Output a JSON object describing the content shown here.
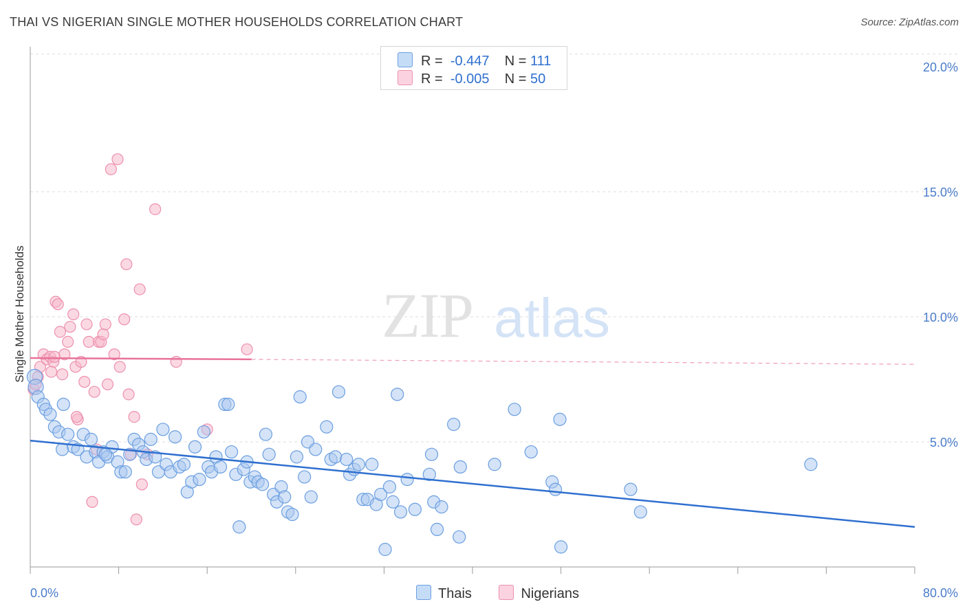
{
  "header": {
    "title": "THAI VS NIGERIAN SINGLE MOTHER HOUSEHOLDS CORRELATION CHART",
    "source": "Source: ZipAtlas.com"
  },
  "watermark": {
    "zip": "ZIP",
    "atlas": "atlas"
  },
  "legend": {
    "thais": {
      "r_label": "R =",
      "r_value": "-0.447",
      "n_label": "N =",
      "n_value": "111"
    },
    "nigerians": {
      "r_label": "R =",
      "r_value": "-0.005",
      "n_label": "N =",
      "n_value": "50"
    }
  },
  "bottom_legend": {
    "thais": "Thais",
    "nigerians": "Nigerians"
  },
  "colors": {
    "thais_fill": "#a9c8f0",
    "thais_stroke": "#6a9ee0",
    "thais_line": "#2f6fcf",
    "nigerians_fill": "#f7b9cc",
    "nigerians_stroke": "#ec8fae",
    "nigerians_line": "#e8729a",
    "tick_text": "#4a7cc9",
    "grid": "#dddddd"
  },
  "chart_data": {
    "type": "scatter",
    "title": "THAI VS NIGERIAN SINGLE MOTHER HOUSEHOLDS CORRELATION CHART",
    "xlabel": "",
    "ylabel": "Single Mother Households",
    "xlim": [
      0,
      80
    ],
    "ylim": [
      0,
      20.5
    ],
    "x_tick_labels": [
      "0.0%",
      "80.0%"
    ],
    "y_ticks": [
      5,
      10,
      15,
      20
    ],
    "y_tick_labels": [
      "5.0%",
      "10.0%",
      "15.0%",
      "20.0%"
    ],
    "grid": "horizontal dashed",
    "legend_position": "top-center",
    "series": [
      {
        "name": "Thais",
        "points": [
          [
            0.4,
            7.6
          ],
          [
            0.5,
            7.2
          ],
          [
            0.7,
            6.8
          ],
          [
            1.2,
            6.5
          ],
          [
            1.4,
            6.3
          ],
          [
            1.8,
            6.1
          ],
          [
            2.2,
            5.6
          ],
          [
            2.6,
            5.4
          ],
          [
            2.9,
            4.7
          ],
          [
            3.4,
            5.3
          ],
          [
            3.9,
            4.8
          ],
          [
            4.3,
            4.7
          ],
          [
            4.8,
            5.3
          ],
          [
            5.1,
            4.4
          ],
          [
            5.5,
            5.1
          ],
          [
            5.9,
            4.6
          ],
          [
            6.2,
            4.2
          ],
          [
            6.6,
            4.6
          ],
          [
            7.0,
            4.4
          ],
          [
            7.4,
            4.8
          ],
          [
            7.9,
            4.2
          ],
          [
            8.2,
            3.8
          ],
          [
            8.6,
            3.8
          ],
          [
            9.0,
            4.5
          ],
          [
            9.4,
            5.1
          ],
          [
            9.8,
            4.9
          ],
          [
            10.2,
            4.6
          ],
          [
            10.5,
            4.3
          ],
          [
            10.9,
            5.1
          ],
          [
            11.3,
            4.4
          ],
          [
            11.6,
            3.8
          ],
          [
            12.0,
            5.5
          ],
          [
            12.3,
            4.1
          ],
          [
            12.7,
            3.8
          ],
          [
            13.1,
            5.2
          ],
          [
            13.5,
            4.0
          ],
          [
            13.9,
            4.1
          ],
          [
            14.2,
            3.0
          ],
          [
            14.6,
            3.4
          ],
          [
            14.9,
            4.8
          ],
          [
            15.3,
            3.5
          ],
          [
            15.7,
            5.4
          ],
          [
            16.1,
            4.0
          ],
          [
            16.4,
            3.8
          ],
          [
            16.8,
            4.4
          ],
          [
            17.2,
            4.0
          ],
          [
            17.6,
            6.5
          ],
          [
            17.9,
            6.5
          ],
          [
            18.2,
            4.6
          ],
          [
            18.6,
            3.7
          ],
          [
            18.9,
            1.6
          ],
          [
            19.3,
            3.9
          ],
          [
            19.6,
            4.2
          ],
          [
            19.9,
            3.4
          ],
          [
            20.3,
            3.6
          ],
          [
            20.6,
            3.4
          ],
          [
            21.0,
            3.3
          ],
          [
            21.3,
            5.3
          ],
          [
            21.6,
            4.5
          ],
          [
            22.0,
            2.9
          ],
          [
            22.3,
            2.6
          ],
          [
            22.7,
            3.2
          ],
          [
            23.0,
            2.8
          ],
          [
            23.3,
            2.2
          ],
          [
            23.7,
            2.1
          ],
          [
            24.1,
            4.4
          ],
          [
            24.4,
            6.8
          ],
          [
            24.8,
            3.6
          ],
          [
            25.1,
            5.0
          ],
          [
            25.4,
            2.8
          ],
          [
            25.8,
            4.7
          ],
          [
            26.8,
            5.6
          ],
          [
            27.2,
            4.3
          ],
          [
            27.6,
            4.4
          ],
          [
            27.9,
            7.0
          ],
          [
            28.6,
            4.3
          ],
          [
            28.9,
            3.7
          ],
          [
            29.3,
            3.9
          ],
          [
            29.7,
            4.1
          ],
          [
            30.1,
            2.7
          ],
          [
            30.5,
            2.7
          ],
          [
            30.9,
            4.1
          ],
          [
            31.3,
            2.5
          ],
          [
            31.7,
            2.9
          ],
          [
            32.1,
            0.7
          ],
          [
            32.5,
            3.2
          ],
          [
            32.8,
            2.6
          ],
          [
            33.2,
            6.9
          ],
          [
            33.5,
            2.2
          ],
          [
            34.1,
            3.5
          ],
          [
            34.8,
            2.3
          ],
          [
            36.1,
            3.7
          ],
          [
            36.3,
            4.5
          ],
          [
            36.5,
            2.6
          ],
          [
            36.8,
            1.5
          ],
          [
            37.2,
            2.4
          ],
          [
            38.3,
            5.7
          ],
          [
            38.8,
            1.2
          ],
          [
            38.9,
            4.0
          ],
          [
            42.0,
            4.1
          ],
          [
            43.8,
            6.3
          ],
          [
            45.3,
            4.6
          ],
          [
            47.2,
            3.4
          ],
          [
            47.5,
            3.1
          ],
          [
            47.9,
            5.9
          ],
          [
            48.0,
            0.8
          ],
          [
            54.3,
            3.1
          ],
          [
            55.2,
            2.2
          ],
          [
            70.6,
            4.1
          ],
          [
            3.0,
            6.5
          ],
          [
            6.8,
            4.5
          ]
        ],
        "trend": [
          [
            0,
            5.05
          ],
          [
            80,
            1.6
          ]
        ]
      },
      {
        "name": "Nigerians",
        "points": [
          [
            0.3,
            7.1
          ],
          [
            0.5,
            7.3
          ],
          [
            0.7,
            7.6
          ],
          [
            0.9,
            8.0
          ],
          [
            1.2,
            8.5
          ],
          [
            1.5,
            8.3
          ],
          [
            1.8,
            8.4
          ],
          [
            2.1,
            8.2
          ],
          [
            2.3,
            10.6
          ],
          [
            2.5,
            10.5
          ],
          [
            2.7,
            9.4
          ],
          [
            2.9,
            7.7
          ],
          [
            3.1,
            8.5
          ],
          [
            3.4,
            9.0
          ],
          [
            3.6,
            9.6
          ],
          [
            3.9,
            10.1
          ],
          [
            4.1,
            8.0
          ],
          [
            4.3,
            5.9
          ],
          [
            4.6,
            8.2
          ],
          [
            4.9,
            7.4
          ],
          [
            5.1,
            9.7
          ],
          [
            5.3,
            9.0
          ],
          [
            5.6,
            2.6
          ],
          [
            5.8,
            7.0
          ],
          [
            6.0,
            4.7
          ],
          [
            6.2,
            9.0
          ],
          [
            6.4,
            9.0
          ],
          [
            6.6,
            9.3
          ],
          [
            6.8,
            9.7
          ],
          [
            7.0,
            7.3
          ],
          [
            7.3,
            15.9
          ],
          [
            7.6,
            8.5
          ],
          [
            7.9,
            16.3
          ],
          [
            8.1,
            8.0
          ],
          [
            8.5,
            9.9
          ],
          [
            8.7,
            12.1
          ],
          [
            9.1,
            4.5
          ],
          [
            9.4,
            6.0
          ],
          [
            9.6,
            1.9
          ],
          [
            9.9,
            11.1
          ],
          [
            10.1,
            3.3
          ],
          [
            11.3,
            14.3
          ],
          [
            13.2,
            8.2
          ],
          [
            16.0,
            5.5
          ],
          [
            19.6,
            8.7
          ],
          [
            4.2,
            6.0
          ],
          [
            1.9,
            7.8
          ],
          [
            8.9,
            6.9
          ],
          [
            10.6,
            4.5
          ],
          [
            2.2,
            8.4
          ]
        ],
        "trend": [
          [
            0,
            8.35
          ],
          [
            20,
            8.3
          ]
        ],
        "trend_extended": [
          [
            20,
            8.3
          ],
          [
            80,
            8.1
          ]
        ]
      }
    ]
  }
}
